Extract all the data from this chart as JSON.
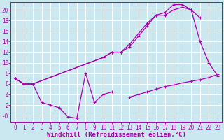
{
  "bg_color": "#cbe8f0",
  "line_color": "#aa00aa",
  "grid_color": "#ffffff",
  "xlabel": "Windchill (Refroidissement éolien,°C)",
  "xlabel_fontsize": 6.5,
  "tick_fontsize": 5.5,
  "xlim": [
    -0.5,
    23.5
  ],
  "ylim": [
    -1.2,
    21.5
  ],
  "yticks": [
    0,
    2,
    4,
    6,
    8,
    10,
    12,
    14,
    16,
    18,
    20
  ],
  "ytick_labels": [
    "-0",
    "2",
    "4",
    "6",
    "8",
    "10",
    "12",
    "14",
    "16",
    "18",
    "20"
  ],
  "xticks": [
    0,
    1,
    2,
    3,
    4,
    5,
    6,
    7,
    8,
    9,
    10,
    11,
    12,
    13,
    14,
    15,
    16,
    17,
    18,
    19,
    20,
    21,
    22,
    23
  ],
  "line1_x": [
    0,
    1,
    2,
    10,
    11,
    12,
    13,
    14,
    15,
    16,
    17,
    18,
    19,
    20,
    21,
    22,
    23
  ],
  "line1_y": [
    7,
    6,
    6,
    11,
    12,
    12,
    13,
    15,
    17,
    19,
    19,
    20,
    20.5,
    20,
    14,
    10,
    7.5
  ],
  "line2_x": [
    0,
    1,
    2,
    10,
    11,
    12,
    13,
    14,
    15,
    16,
    17,
    18,
    19,
    20,
    21
  ],
  "line2_y": [
    7,
    6,
    6,
    11,
    12,
    12,
    13.5,
    15.5,
    17.5,
    19,
    19.5,
    21,
    21,
    20,
    18.5
  ],
  "line3_x": [
    0,
    1,
    2,
    3,
    4,
    5,
    6,
    7,
    8,
    9,
    10,
    11
  ],
  "line3_y": [
    7,
    6,
    6,
    2.5,
    2,
    1.5,
    -0.2,
    -0.5,
    8,
    2.5,
    4,
    4.5
  ],
  "line4_x": [
    0,
    1,
    2,
    3,
    4,
    5,
    6,
    7,
    8,
    9,
    10,
    11,
    12,
    13,
    14,
    15,
    16,
    17,
    18,
    19,
    20,
    21,
    22,
    23
  ],
  "line4_y": [
    null,
    null,
    null,
    null,
    null,
    null,
    null,
    null,
    null,
    null,
    null,
    null,
    null,
    3.5,
    4,
    4.5,
    5,
    5.5,
    5.8,
    6.2,
    6.5,
    6.8,
    7.2,
    7.8
  ]
}
